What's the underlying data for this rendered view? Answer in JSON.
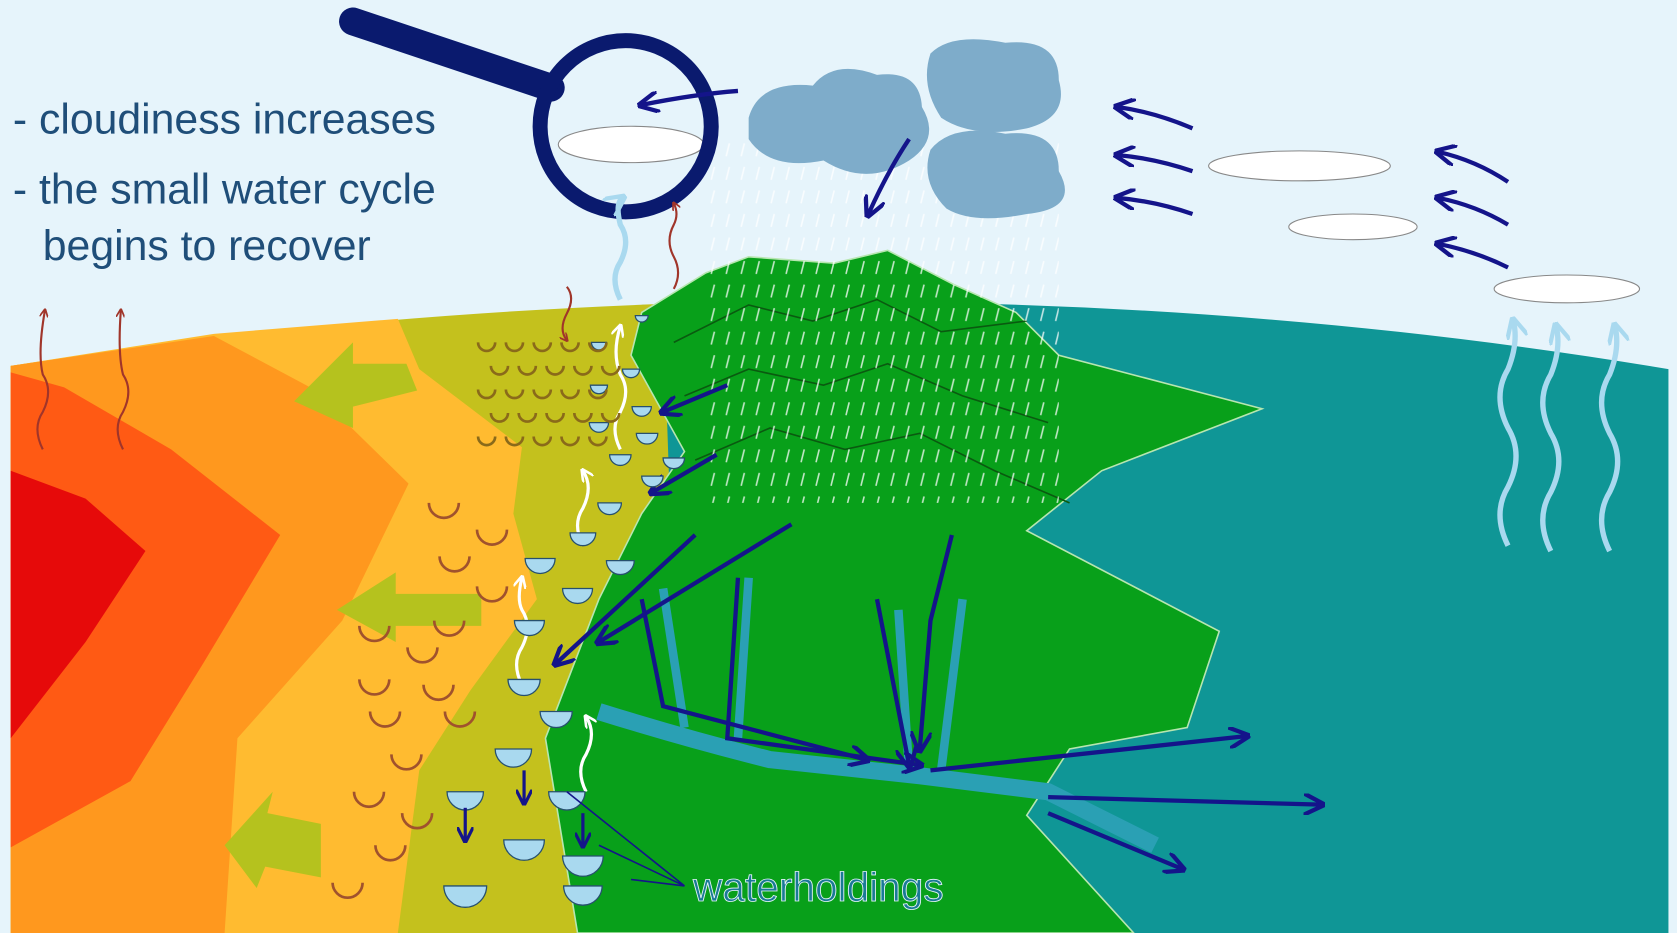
{
  "notes": [
    [
      "- cloudiness increases"
    ],
    [
      "- the small water cycle",
      "begins to recover"
    ]
  ],
  "label": "waterholdings"
}
